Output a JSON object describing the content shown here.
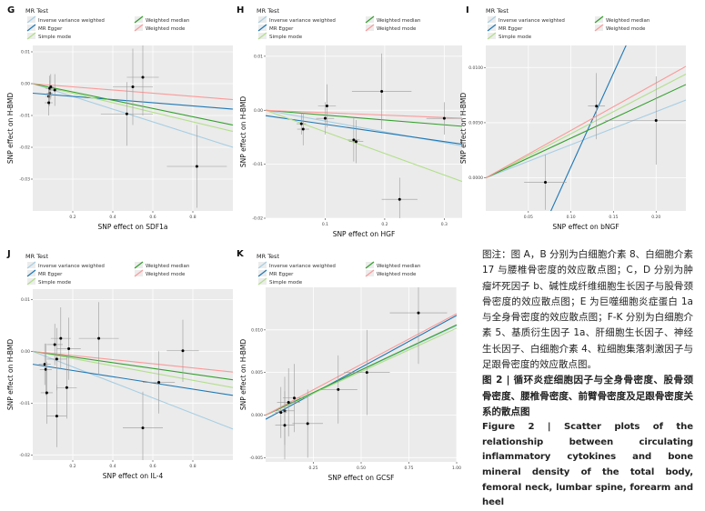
{
  "chart_data": [
    {
      "type": "scatter",
      "panel": "G",
      "legend_title": "MR Test",
      "legend": [
        {
          "label": "Inverse variance weighted",
          "color": "#a6cee3"
        },
        {
          "label": "MR Egger",
          "color": "#1f78b4"
        },
        {
          "label": "Simple mode",
          "color": "#b2df8a"
        },
        {
          "label": "Weighted median",
          "color": "#33a02c"
        },
        {
          "label": "Weighted mode",
          "color": "#fb9a99"
        }
      ],
      "xlabel": "SNP effect on SDF1a",
      "ylabel": "SNP effect on H-BMD",
      "xlim": [
        0,
        1.0
      ],
      "ylim": [
        -0.04,
        0.012
      ],
      "xticks": [
        0.2,
        0.4,
        0.6,
        0.8
      ],
      "xtick_labels": [
        "0.2",
        "0.4",
        "0.6",
        "0.8"
      ],
      "yticks": [
        -0.03,
        -0.02,
        -0.01,
        0.0,
        0.01
      ],
      "ytick_labels": [
        "-0.03",
        "-0.02",
        "-0.01",
        "0.00",
        "0.01"
      ],
      "points": [
        {
          "x": 0.08,
          "y": -0.004,
          "xerr": 0.015,
          "yerr": 0.003
        },
        {
          "x": 0.085,
          "y": -0.003,
          "xerr": 0.015,
          "yerr": 0.004
        },
        {
          "x": 0.085,
          "y": -0.0015,
          "xerr": 0.02,
          "yerr": 0.004
        },
        {
          "x": 0.09,
          "y": -0.001,
          "xerr": 0.015,
          "yerr": 0.004
        },
        {
          "x": 0.11,
          "y": -0.002,
          "xerr": 0.03,
          "yerr": 0.005
        },
        {
          "x": 0.08,
          "y": -0.006,
          "xerr": 0.02,
          "yerr": 0.004
        },
        {
          "x": 0.5,
          "y": -0.001,
          "xerr": 0.1,
          "yerr": 0.012
        },
        {
          "x": 0.55,
          "y": 0.002,
          "xerr": 0.08,
          "yerr": 0.012
        },
        {
          "x": 0.47,
          "y": -0.0095,
          "xerr": 0.13,
          "yerr": 0.01
        },
        {
          "x": 0.82,
          "y": -0.026,
          "xerr": 0.15,
          "yerr": 0.013
        }
      ],
      "lines": [
        {
          "method": "Inverse variance weighted",
          "y0": 0.0,
          "slope": -0.02
        },
        {
          "method": "MR Egger",
          "y0": -0.003,
          "slope": -0.005
        },
        {
          "method": "Simple mode",
          "y0": 0.0,
          "slope": -0.015
        },
        {
          "method": "Weighted median",
          "y0": 0.0,
          "slope": -0.013
        },
        {
          "method": "Weighted mode",
          "y0": 0.0,
          "slope": -0.005
        }
      ]
    },
    {
      "type": "scatter",
      "panel": "H",
      "legend_title": "MR Test",
      "legend": [
        {
          "label": "Inverse variance weighted",
          "color": "#a6cee3"
        },
        {
          "label": "MR Egger",
          "color": "#1f78b4"
        },
        {
          "label": "Simple mode",
          "color": "#b2df8a"
        },
        {
          "label": "Weighted median",
          "color": "#33a02c"
        },
        {
          "label": "Weighted mode",
          "color": "#fb9a99"
        }
      ],
      "xlabel": "SNP effect on HGF",
      "ylabel": "SNP effect on H-BMD",
      "xlim": [
        0,
        0.33
      ],
      "ylim": [
        -0.02,
        0.012
      ],
      "xticks": [
        0.1,
        0.2,
        0.3
      ],
      "xtick_labels": [
        "0.1",
        "0.2",
        "0.3"
      ],
      "yticks": [
        -0.02,
        -0.01,
        0.0,
        0.01
      ],
      "ytick_labels": [
        "-0.02",
        "-0.01",
        "0.00",
        "0.01"
      ],
      "points": [
        {
          "x": 0.06,
          "y": -0.0025,
          "xerr": 0.008,
          "yerr": 0.002
        },
        {
          "x": 0.063,
          "y": -0.0035,
          "xerr": 0.01,
          "yerr": 0.003
        },
        {
          "x": 0.1,
          "y": -0.0015,
          "xerr": 0.015,
          "yerr": 0.003
        },
        {
          "x": 0.103,
          "y": 0.0008,
          "xerr": 0.015,
          "yerr": 0.004
        },
        {
          "x": 0.148,
          "y": -0.0055,
          "xerr": 0.01,
          "yerr": 0.004
        },
        {
          "x": 0.152,
          "y": -0.0058,
          "xerr": 0.012,
          "yerr": 0.004
        },
        {
          "x": 0.195,
          "y": 0.0035,
          "xerr": 0.05,
          "yerr": 0.007
        },
        {
          "x": 0.3,
          "y": -0.0015,
          "xerr": 0.03,
          "yerr": 0.003
        },
        {
          "x": 0.225,
          "y": -0.0165,
          "xerr": 0.03,
          "yerr": 0.004
        }
      ],
      "lines": [
        {
          "method": "Inverse variance weighted",
          "y0": 0.0,
          "slope": -0.02
        },
        {
          "method": "MR Egger",
          "y0": -0.001,
          "slope": -0.016
        },
        {
          "method": "Simple mode",
          "y0": 0.0,
          "slope": -0.04
        },
        {
          "method": "Weighted median",
          "y0": 0.0,
          "slope": -0.009
        },
        {
          "method": "Weighted mode",
          "y0": 0.0,
          "slope": -0.0045
        }
      ]
    },
    {
      "type": "scatter",
      "panel": "I",
      "legend_title": "MR Test",
      "legend": [
        {
          "label": "Inverse variance weighted",
          "color": "#a6cee3"
        },
        {
          "label": "MR Egger",
          "color": "#1f78b4"
        },
        {
          "label": "Simple mode",
          "color": "#b2df8a"
        },
        {
          "label": "Weighted median",
          "color": "#33a02c"
        },
        {
          "label": "Weighted mode",
          "color": "#fb9a99"
        }
      ],
      "xlabel": "SNP effect on bNGF",
      "ylabel": "SNP effect on H-BMD",
      "xlim": [
        0,
        0.235
      ],
      "ylim": [
        -0.003,
        0.012
      ],
      "xticks": [
        0.05,
        0.1,
        0.15,
        0.2
      ],
      "xtick_labels": [
        "0.05",
        "0.10",
        "0.15",
        "0.20"
      ],
      "yticks": [
        0.0,
        0.005,
        0.01
      ],
      "ytick_labels": [
        "0.0000",
        "0.0050",
        "0.0100"
      ],
      "points": [
        {
          "x": 0.13,
          "y": 0.0065,
          "xerr": 0.01,
          "yerr": 0.003
        },
        {
          "x": 0.2,
          "y": 0.0052,
          "xerr": 0.06,
          "yerr": 0.004
        },
        {
          "x": 0.07,
          "y": -0.0004,
          "xerr": 0.025,
          "yerr": 0.0025
        }
      ],
      "lines": [
        {
          "method": "Inverse variance weighted",
          "y0": 0.0,
          "slope": 0.03
        },
        {
          "method": "MR Egger",
          "y0": -0.016,
          "slope": 0.17
        },
        {
          "method": "Simple mode",
          "y0": 0.0,
          "slope": 0.04
        },
        {
          "method": "Weighted median",
          "y0": 0.0,
          "slope": 0.036
        },
        {
          "method": "Weighted mode",
          "y0": 0.0,
          "slope": 0.043
        }
      ]
    },
    {
      "type": "scatter",
      "panel": "J",
      "legend_title": "MR Test",
      "legend": [
        {
          "label": "Inverse variance weighted",
          "color": "#a6cee3"
        },
        {
          "label": "MR Egger",
          "color": "#1f78b4"
        },
        {
          "label": "Simple mode",
          "color": "#b2df8a"
        },
        {
          "label": "Weighted median",
          "color": "#33a02c"
        },
        {
          "label": "Weighted mode",
          "color": "#fb9a99"
        }
      ],
      "xlabel": "SNP effect on IL-4",
      "ylabel": "SNP effect on H-BMD",
      "xlim": [
        0,
        1.0
      ],
      "ylim": [
        -0.021,
        0.012
      ],
      "xticks": [
        0.2,
        0.4,
        0.6,
        0.8
      ],
      "xtick_labels": [
        "0.2",
        "0.4",
        "0.6",
        "0.8"
      ],
      "yticks": [
        -0.02,
        -0.01,
        0.0,
        0.01
      ],
      "ytick_labels": [
        "-0.02",
        "-0.01",
        "0.00",
        "0.01"
      ],
      "points": [
        {
          "x": 0.06,
          "y": -0.0025,
          "xerr": 0.03,
          "yerr": 0.004
        },
        {
          "x": 0.065,
          "y": -0.0035,
          "xerr": 0.03,
          "yerr": 0.005
        },
        {
          "x": 0.07,
          "y": -0.008,
          "xerr": 0.03,
          "yerr": 0.006
        },
        {
          "x": 0.11,
          "y": 0.0013,
          "xerr": 0.04,
          "yerr": 0.004
        },
        {
          "x": 0.12,
          "y": -0.0015,
          "xerr": 0.05,
          "yerr": 0.006
        },
        {
          "x": 0.14,
          "y": 0.0025,
          "xerr": 0.05,
          "yerr": 0.006
        },
        {
          "x": 0.18,
          "y": 0.0005,
          "xerr": 0.06,
          "yerr": 0.006
        },
        {
          "x": 0.17,
          "y": -0.007,
          "xerr": 0.05,
          "yerr": 0.006
        },
        {
          "x": 0.12,
          "y": -0.0125,
          "xerr": 0.05,
          "yerr": 0.006
        },
        {
          "x": 0.33,
          "y": 0.0025,
          "xerr": 0.1,
          "yerr": 0.007
        },
        {
          "x": 0.63,
          "y": -0.006,
          "xerr": 0.08,
          "yerr": 0.006
        },
        {
          "x": 0.75,
          "y": 0.0001,
          "xerr": 0.08,
          "yerr": 0.006
        },
        {
          "x": 0.55,
          "y": -0.0148,
          "xerr": 0.1,
          "yerr": 0.007
        }
      ],
      "lines": [
        {
          "method": "Inverse variance weighted",
          "y0": 0.0,
          "slope": -0.015
        },
        {
          "method": "MR Egger",
          "y0": -0.0025,
          "slope": -0.006
        },
        {
          "method": "Simple mode",
          "y0": 0.0,
          "slope": -0.007
        },
        {
          "method": "Weighted median",
          "y0": 0.0,
          "slope": -0.0055
        },
        {
          "method": "Weighted mode",
          "y0": 0.0,
          "slope": -0.004
        }
      ]
    },
    {
      "type": "scatter",
      "panel": "K",
      "legend_title": "MR Test",
      "legend": [
        {
          "label": "Inverse variance weighted",
          "color": "#a6cee3"
        },
        {
          "label": "MR Egger",
          "color": "#1f78b4"
        },
        {
          "label": "Simple mode",
          "color": "#b2df8a"
        },
        {
          "label": "Weighted median",
          "color": "#33a02c"
        },
        {
          "label": "Weighted mode",
          "color": "#fb9a99"
        }
      ],
      "xlabel": "SNP effect on GCSF",
      "ylabel": "SNP effect on H-BMD",
      "xlim": [
        0,
        1.0
      ],
      "ylim": [
        -0.0055,
        0.015
      ],
      "xticks": [
        0.25,
        0.5,
        0.75,
        1.0
      ],
      "xtick_labels": [
        "0.25",
        "0.50",
        "0.75",
        "1.00"
      ],
      "yticks": [
        -0.005,
        0.0,
        0.005,
        0.01
      ],
      "ytick_labels": [
        "-0.005",
        "0.000",
        "0.005",
        "0.010"
      ],
      "points": [
        {
          "x": 0.08,
          "y": 0.0003,
          "xerr": 0.03,
          "yerr": 0.003
        },
        {
          "x": 0.1,
          "y": 0.0005,
          "xerr": 0.05,
          "yerr": 0.004
        },
        {
          "x": 0.1,
          "y": -0.0012,
          "xerr": 0.05,
          "yerr": 0.004
        },
        {
          "x": 0.12,
          "y": 0.0015,
          "xerr": 0.06,
          "yerr": 0.004
        },
        {
          "x": 0.15,
          "y": 0.002,
          "xerr": 0.06,
          "yerr": 0.004
        },
        {
          "x": 0.22,
          "y": -0.001,
          "xerr": 0.08,
          "yerr": 0.004
        },
        {
          "x": 0.38,
          "y": 0.003,
          "xerr": 0.1,
          "yerr": 0.004
        },
        {
          "x": 0.53,
          "y": 0.005,
          "xerr": 0.12,
          "yerr": 0.005
        },
        {
          "x": 0.8,
          "y": 0.012,
          "xerr": 0.15,
          "yerr": 0.006
        }
      ],
      "lines": [
        {
          "method": "Inverse variance weighted",
          "y0": 0.0,
          "slope": 0.0105
        },
        {
          "method": "MR Egger",
          "y0": -0.0005,
          "slope": 0.0122
        },
        {
          "method": "Simple mode",
          "y0": 0.0,
          "slope": 0.0102
        },
        {
          "method": "Weighted median",
          "y0": 0.0,
          "slope": 0.0106
        },
        {
          "method": "Weighted mode",
          "y0": 0.0,
          "slope": 0.0119
        }
      ]
    }
  ],
  "caption": {
    "zh_note": "图注：图 A，B 分别为白细胞介素 8、白细胞介素 17 与腰椎骨密度的效应散点图；C，D 分别为肿瘤坏死因子 b、碱性成纤维细胞生长因子与股骨颈骨密度的效应散点图；E 为巨噬细胞炎症蛋白 1a 与全身骨密度的效应散点图；F-K 分别为白细胞介素 5、基质衍生因子 1a、肝细胞生长因子、神经生长因子、白细胞介素 4、粒细胞集落刺激因子与足跟骨密度的效应散点图。",
    "zh_title": "图 2 | 循环炎症细胞因子与全身骨密度、股骨颈骨密度、腰椎骨密度、前臂骨密度及足跟骨密度关系的散点图",
    "en_title": "Figure 2 | Scatter plots of the relationship between circulating inflammatory cytokines and bone mineral density of the total body, femoral neck, lumbar spine, forearm and heel"
  }
}
